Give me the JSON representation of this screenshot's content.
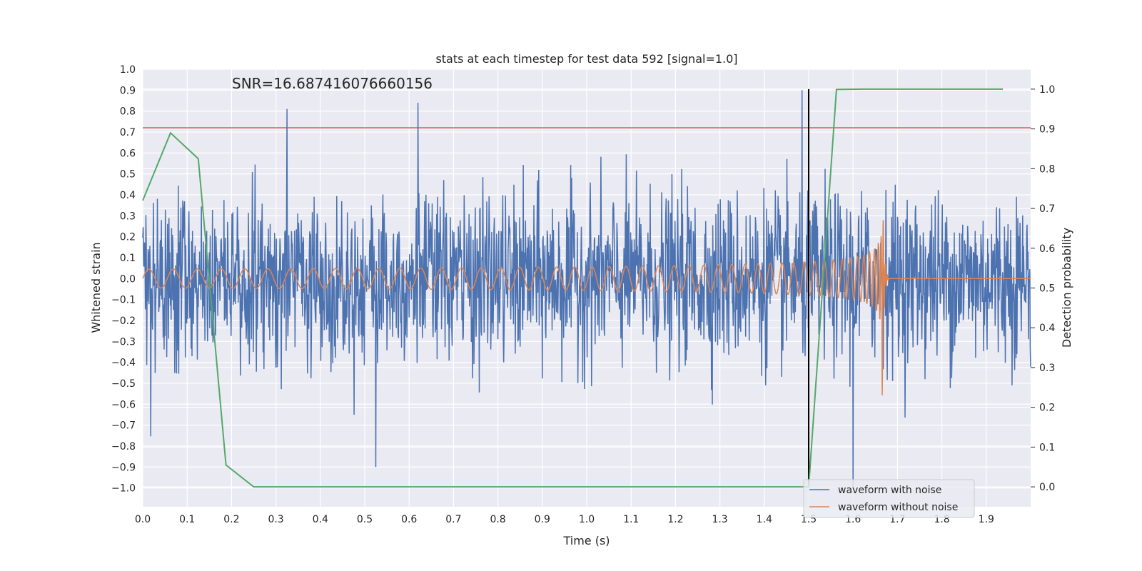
{
  "chart_data": {
    "type": "line",
    "title": "stats at each timestep for test data 592 [signal=1.0]",
    "xlabel": "Time (s)",
    "ylabel": "Whitened strain",
    "y2label": "Detection probability",
    "annotation": "SNR=16.687416076660156",
    "xlim": [
      0.0,
      2.0
    ],
    "ylim": [
      -1.09,
      1.0
    ],
    "y2lim": [
      -0.05,
      1.05
    ],
    "xticks": [
      "0.0",
      "0.1",
      "0.2",
      "0.3",
      "0.4",
      "0.5",
      "0.6",
      "0.7",
      "0.8",
      "0.9",
      "1.0",
      "1.1",
      "1.2",
      "1.3",
      "1.4",
      "1.5",
      "1.6",
      "1.7",
      "1.8",
      "1.9"
    ],
    "yticks": [
      "1.0",
      "0.9",
      "0.8",
      "0.7",
      "0.6",
      "0.5",
      "0.4",
      "0.3",
      "0.2",
      "0.1",
      "0.0",
      "−0.1",
      "−0.2",
      "−0.3",
      "−0.4",
      "−0.5",
      "−0.6",
      "−0.7",
      "−0.8",
      "−0.9",
      "−1.0"
    ],
    "y2ticks": [
      "0.0",
      "0.1",
      "0.2",
      "0.3",
      "0.4",
      "0.5",
      "0.6",
      "0.7",
      "0.8",
      "0.9",
      "1.0"
    ],
    "grid": true,
    "legend_position": "lower-right",
    "threshold": {
      "y": 0.72,
      "color": "#c44e52"
    },
    "marker_time": {
      "x": 1.5,
      "color": "#000000"
    },
    "series": [
      {
        "name": "waveform with noise",
        "axis": "left",
        "color": "#4c72b0",
        "kind": "noisy-strain",
        "description_values": {
          "mean": 0.0,
          "typical_peak_max": 0.84,
          "typical_peak_min": -0.9,
          "notable_peaks": [
            {
              "x": 0.325,
              "y": 0.81
            },
            {
              "x": 0.62,
              "y": 0.84
            },
            {
              "x": 0.525,
              "y": -0.9
            },
            {
              "x": 1.485,
              "y": 0.9
            },
            {
              "x": 1.6,
              "y": -1.0
            }
          ]
        }
      },
      {
        "name": "waveform without noise",
        "axis": "left",
        "color": "#dd8452",
        "kind": "chirp",
        "params": {
          "f0_hz": 18,
          "merger_time": 1.665,
          "amp_start": 0.045,
          "amp_merger": 0.69,
          "ringdown_end": 1.68,
          "baseline": 0.0
        }
      },
      {
        "name": "detection probability",
        "axis": "right",
        "color": "#55a868",
        "x": [
          0.0,
          0.0625,
          0.125,
          0.1875,
          0.25,
          0.3125,
          1.4375,
          1.5,
          1.5625,
          1.625,
          1.9375
        ],
        "values": [
          0.72,
          0.89,
          0.825,
          0.055,
          0.0,
          0.0,
          0.0,
          0.0,
          0.999,
          1.0,
          1.0
        ]
      }
    ]
  }
}
